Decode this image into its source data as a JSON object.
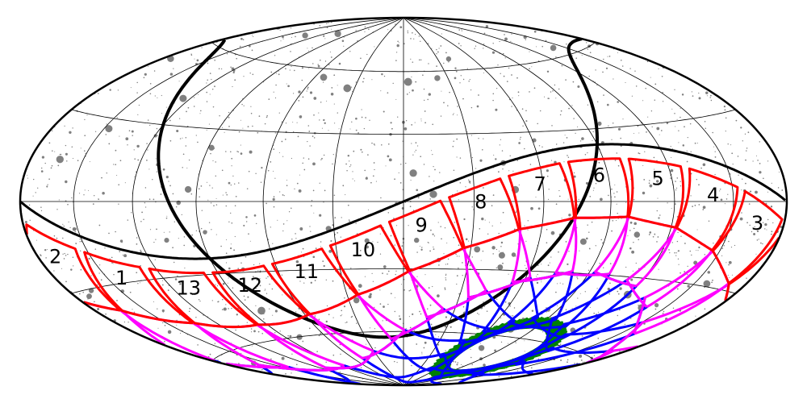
{
  "map": {
    "sector_labels": [
      "1",
      "2",
      "3",
      "4",
      "5",
      "6",
      "7",
      "8",
      "9",
      "10",
      "11",
      "12",
      "13"
    ]
  }
}
